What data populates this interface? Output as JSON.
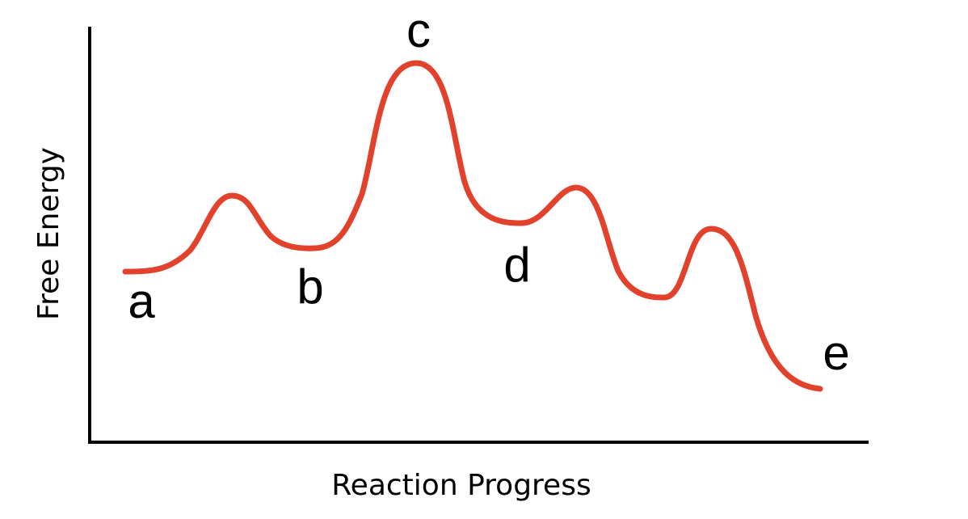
{
  "axes": {
    "x_title": "Reaction Progress",
    "y_title": "Free Energy"
  },
  "curve": {
    "color": "#e2412c"
  },
  "points": {
    "a": "a",
    "b": "b",
    "c": "c",
    "d": "d",
    "e": "e"
  }
}
